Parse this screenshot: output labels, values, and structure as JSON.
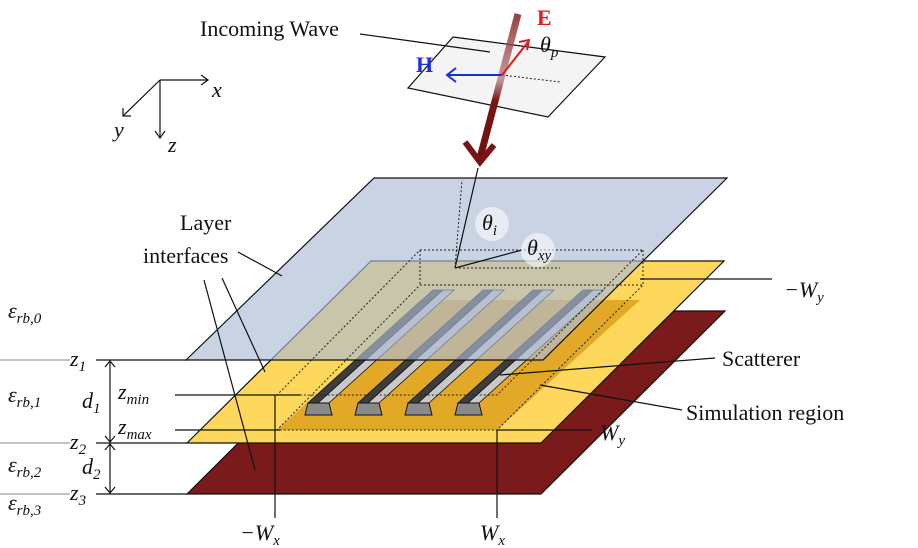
{
  "incoming_wave": "Incoming Wave",
  "fields": {
    "E": "E",
    "H": "H",
    "theta_p": {
      "main": "θ",
      "sub": "p"
    }
  },
  "axes": {
    "x": "x",
    "y": "y",
    "z": "z"
  },
  "angles": {
    "theta_i": {
      "main": "θ",
      "sub": "i"
    },
    "theta_xy": {
      "main": "θ",
      "sub": "xy"
    }
  },
  "layer_interfaces": [
    "Layer",
    "interfaces"
  ],
  "scatterer": "Scatterer",
  "simulation_region": "Simulation region",
  "permittivities": [
    {
      "main": "ε",
      "sub": "rb,0"
    },
    {
      "main": "ε",
      "sub": "rb,1"
    },
    {
      "main": "ε",
      "sub": "rb,2"
    },
    {
      "main": "ε",
      "sub": "rb,3"
    }
  ],
  "interfaces": [
    {
      "main": "z",
      "sub": "1"
    },
    {
      "main": "z",
      "sub": "2"
    },
    {
      "main": "z",
      "sub": "3"
    }
  ],
  "z_limits": [
    {
      "main": "z",
      "sub": "min"
    },
    {
      "main": "z",
      "sub": "max"
    }
  ],
  "thicknesses": [
    {
      "main": "d",
      "sub": "1"
    },
    {
      "main": "d",
      "sub": "2"
    }
  ],
  "bounds": {
    "neg_wy": {
      "main": "−W",
      "sub": "y"
    },
    "wy": {
      "main": "W",
      "sub": "y"
    },
    "neg_wx": {
      "main": "−W",
      "sub": "x"
    },
    "wx": {
      "main": "W",
      "sub": "x"
    }
  }
}
